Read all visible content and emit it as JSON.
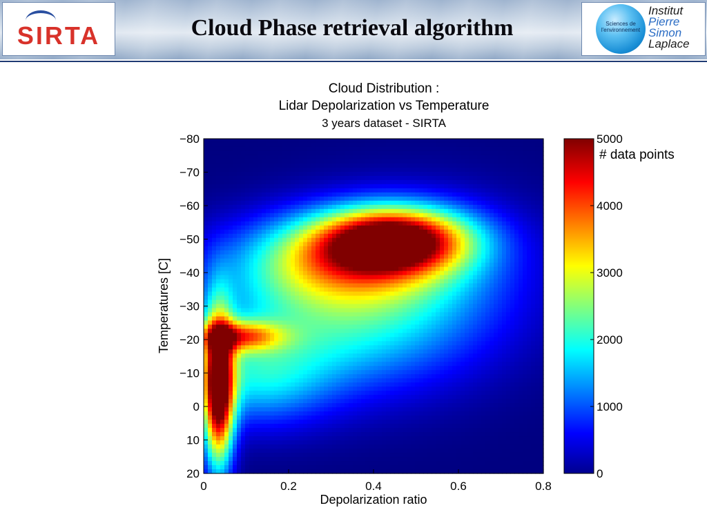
{
  "header": {
    "title": "Cloud Phase retrieval algorithm",
    "logo_left": "SIRTA",
    "logo_right": {
      "badge": "Sciences de l'environnement",
      "name": [
        "Institut",
        "Pierre",
        "Simon",
        "Laplace"
      ]
    }
  },
  "chart_data": {
    "type": "heatmap",
    "title_lines": [
      "Cloud Distribution :",
      "Lidar Depolarization vs Temperature",
      "3 years dataset - SIRTA"
    ],
    "xlabel": "Depolarization ratio",
    "ylabel": "Temperatures [C]",
    "xlim": [
      0,
      0.8
    ],
    "ylim": [
      -80,
      20
    ],
    "y_axis_inverted": true,
    "xticks": [
      "0",
      "0.2",
      "0.4",
      "0.6",
      "0.8"
    ],
    "yticks": [
      "−80",
      "−70",
      "−60",
      "−50",
      "−40",
      "−30",
      "−20",
      "−10",
      "0",
      "10",
      "20"
    ],
    "colorbar": {
      "label": "# data points",
      "range": [
        0,
        5000
      ],
      "ticks": [
        "5000",
        "4000",
        "3000",
        "2000",
        "1000",
        "0"
      ],
      "colormap": "jet"
    },
    "density_regions": [
      {
        "x": 0.035,
        "y": -5,
        "sx": 0.025,
        "sy": 16,
        "peak": 5200
      },
      {
        "x": 0.08,
        "y": -21,
        "sx": 0.07,
        "sy": 3.2,
        "peak": 2600
      },
      {
        "x": 0.45,
        "y": -50,
        "sx": 0.12,
        "sy": 6.5,
        "peak": 4300
      },
      {
        "x": 0.33,
        "y": -44,
        "sx": 0.17,
        "sy": 9,
        "peak": 2300
      },
      {
        "x": 0.3,
        "y": -25,
        "sx": 0.22,
        "sy": 15,
        "peak": 1700
      },
      {
        "x": 0.12,
        "y": -8,
        "sx": 0.12,
        "sy": 10,
        "peak": 1300
      },
      {
        "x": 0.5,
        "y": -40,
        "sx": 0.2,
        "sy": 16,
        "peak": 900
      }
    ]
  }
}
